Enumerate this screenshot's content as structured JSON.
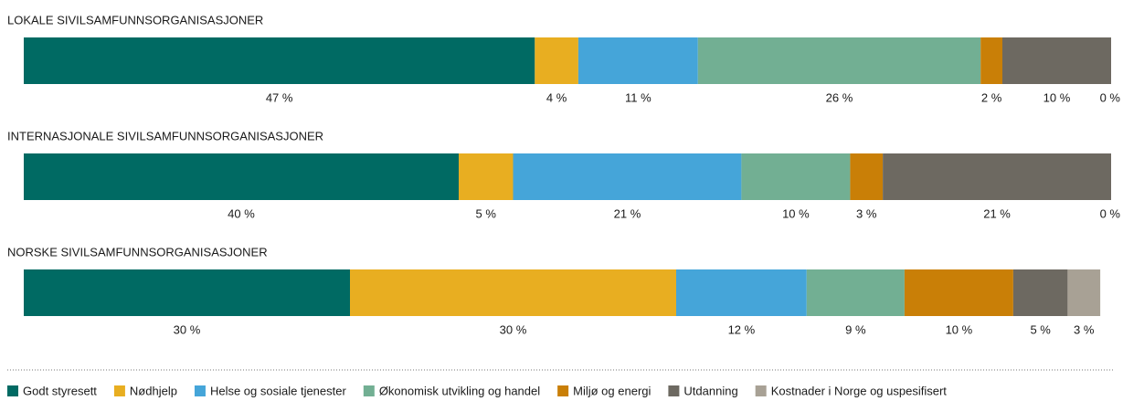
{
  "chart_data": {
    "type": "bar",
    "orientation": "horizontal",
    "stacked": true,
    "categories": [
      "LOKALE SIVILSAMFUNNSORGANISASJONER",
      "INTERNASJONALE SIVILSAMFUNNSORGANISASJONER",
      "NORSKE SIVILSAMFUNNSORGANISASJONER"
    ],
    "xlim": [
      0,
      100
    ],
    "series": [
      {
        "name": "Godt styresett",
        "color": "#006a63",
        "values": [
          47,
          40,
          30
        ],
        "value_labels": [
          "47 %",
          "40 %",
          "30 %"
        ]
      },
      {
        "name": "Nødhjelp",
        "color": "#e8ae21",
        "values": [
          4,
          5,
          30
        ],
        "value_labels": [
          "4 %",
          "5 %",
          "30 %"
        ]
      },
      {
        "name": "Helse og sosiale tjenester",
        "color": "#45a5d9",
        "values": [
          11,
          21,
          12
        ],
        "value_labels": [
          "11 %",
          "21 %",
          "12 %"
        ]
      },
      {
        "name": "Økonomisk utvikling og handel",
        "color": "#72af93",
        "values": [
          26,
          10,
          9
        ],
        "value_labels": [
          "26 %",
          "10 %",
          "9 %"
        ]
      },
      {
        "name": "Miljø og energi",
        "color": "#c97f07",
        "values": [
          2,
          3,
          10
        ],
        "value_labels": [
          "2 %",
          "3 %",
          "10 %"
        ]
      },
      {
        "name": "Utdanning",
        "color": "#6d6961",
        "values": [
          10,
          21,
          5
        ],
        "value_labels": [
          "10 %",
          "21 %",
          "5 %"
        ]
      },
      {
        "name": "Kostnader i Norge og uspesifisert",
        "color": "#a8a195",
        "values": [
          0,
          0,
          3
        ],
        "value_labels": [
          "0 %",
          "0 %",
          "3 %"
        ]
      }
    ],
    "legend": "bottom"
  }
}
